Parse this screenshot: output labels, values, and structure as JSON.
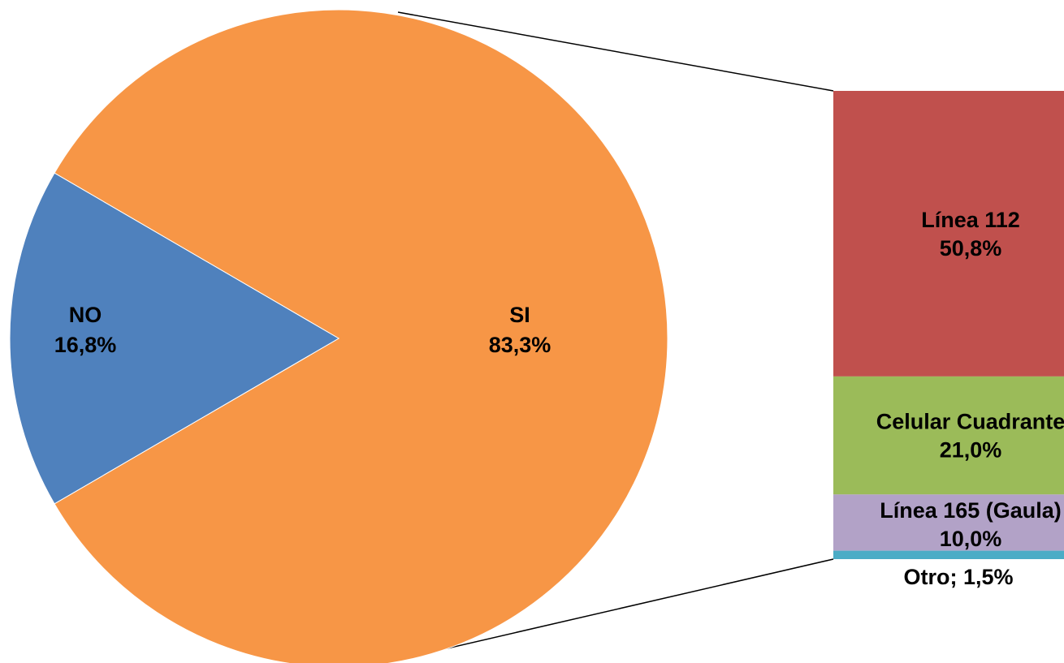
{
  "chart_data": {
    "type": "bar-of-pie",
    "title": "",
    "pie": {
      "slices": [
        {
          "name": "SI",
          "value": 83.3,
          "label": "83,3%",
          "color": "#F79646"
        },
        {
          "name": "NO",
          "value": 16.8,
          "label": "16,8%",
          "color": "#4F81BD"
        }
      ]
    },
    "bar": {
      "exploded_slice": "SI",
      "segments": [
        {
          "name": "Línea 112",
          "value": 50.8,
          "label": "50,8%",
          "color": "#C0504D"
        },
        {
          "name": "Celular Cuadrante",
          "value": 21.0,
          "label": "21,0%",
          "color": "#9BBB59"
        },
        {
          "name": "Línea 165 (Gaula)",
          "value": 10.0,
          "label": "10,0%",
          "color": "#B2A2C7"
        },
        {
          "name": "Otro",
          "value": 1.5,
          "label": "Otro; 1,5%",
          "color": "#4BACC6"
        }
      ]
    }
  }
}
